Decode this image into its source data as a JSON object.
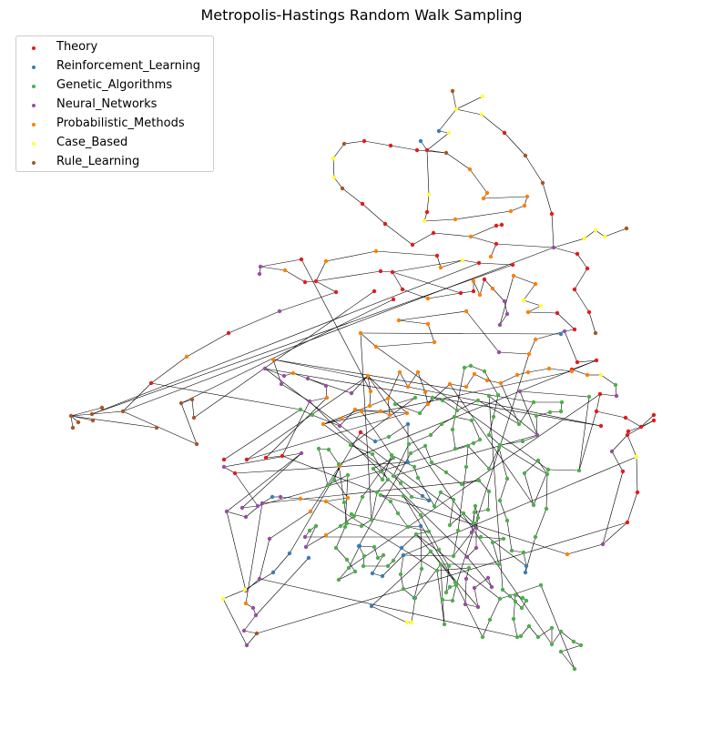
{
  "title": "Metropolis-Hastings Random Walk Sampling",
  "legend": [
    {
      "label": "Theory",
      "color": "#e41a1c"
    },
    {
      "label": "Reinforcement_Learning",
      "color": "#377eb8"
    },
    {
      "label": "Genetic_Algorithms",
      "color": "#4daf4a"
    },
    {
      "label": "Neural_Networks",
      "color": "#984ea3"
    },
    {
      "label": "Probabilistic_Methods",
      "color": "#ff7f00"
    },
    {
      "label": "Case_Based",
      "color": "#ffff33"
    },
    {
      "label": "Rule_Learning",
      "color": "#a65628"
    }
  ]
}
